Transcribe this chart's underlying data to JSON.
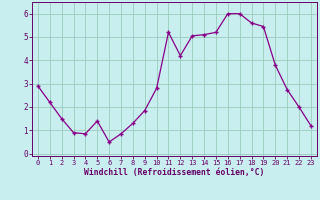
{
  "x": [
    0,
    1,
    2,
    3,
    4,
    5,
    6,
    7,
    8,
    9,
    10,
    11,
    12,
    13,
    14,
    15,
    16,
    17,
    18,
    19,
    20,
    21,
    22,
    23
  ],
  "y": [
    2.9,
    2.2,
    1.5,
    0.9,
    0.85,
    1.4,
    0.5,
    0.85,
    1.3,
    1.85,
    2.8,
    5.2,
    4.2,
    5.05,
    5.1,
    5.2,
    6.0,
    6.0,
    5.6,
    5.45,
    3.8,
    2.75,
    2.0,
    1.2
  ],
  "line_color": "#880088",
  "marker_color": "#880088",
  "bg_color": "#c8eef0",
  "grid_color": "#99ccbb",
  "xlabel": "Windchill (Refroidissement éolien,°C)",
  "xlim": [
    -0.5,
    23.5
  ],
  "ylim": [
    -0.1,
    6.5
  ],
  "yticks": [
    0,
    1,
    2,
    3,
    4,
    5,
    6
  ],
  "xticks": [
    0,
    1,
    2,
    3,
    4,
    5,
    6,
    7,
    8,
    9,
    10,
    11,
    12,
    13,
    14,
    15,
    16,
    17,
    18,
    19,
    20,
    21,
    22,
    23
  ],
  "tick_color": "#660066",
  "label_color": "#660066",
  "axis_color": "#660066",
  "xlabel_fontsize": 5.8,
  "tick_fontsize": 5.0
}
